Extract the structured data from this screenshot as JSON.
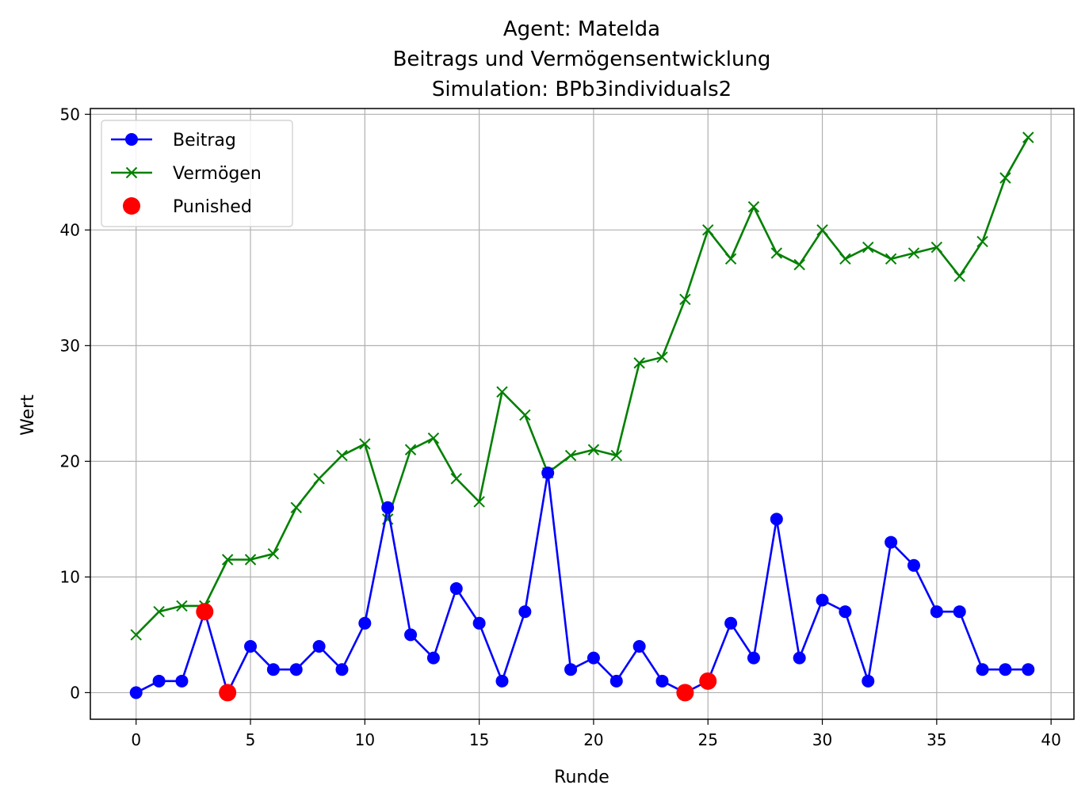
{
  "chart_data": {
    "type": "line",
    "title_lines": [
      "Agent: Matelda",
      "Beitrags und Vermögensentwicklung",
      "Simulation: BPb3individuals2"
    ],
    "xlabel": "Runde",
    "ylabel": "Wert",
    "xlim": [
      -2,
      41
    ],
    "ylim": [
      -2.3,
      50.5
    ],
    "xticks": [
      0,
      5,
      10,
      15,
      20,
      25,
      30,
      35,
      40
    ],
    "yticks": [
      0,
      10,
      20,
      30,
      40,
      50
    ],
    "grid": true,
    "legend_position": "top-left",
    "x": [
      0,
      1,
      2,
      3,
      4,
      5,
      6,
      7,
      8,
      9,
      10,
      11,
      12,
      13,
      14,
      15,
      16,
      17,
      18,
      19,
      20,
      21,
      22,
      23,
      24,
      25,
      26,
      27,
      28,
      29,
      30,
      31,
      32,
      33,
      34,
      35,
      36,
      37,
      38,
      39
    ],
    "series": [
      {
        "name": "Beitrag",
        "color": "#0000ff",
        "marker": "circle",
        "values": [
          0,
          1,
          1,
          7,
          0,
          4,
          2,
          2,
          4,
          2,
          6,
          16,
          5,
          3,
          9,
          6,
          1,
          7,
          19,
          2,
          3,
          1,
          4,
          1,
          0,
          1,
          6,
          3,
          15,
          3,
          8,
          7,
          1,
          13,
          11,
          7,
          7,
          2,
          2,
          2
        ]
      },
      {
        "name": "Vermögen",
        "color": "#008000",
        "marker": "x",
        "values": [
          5,
          7,
          7.5,
          7.5,
          11.5,
          11.5,
          12,
          16,
          18.5,
          20.5,
          21.5,
          15,
          21,
          22,
          18.5,
          16.5,
          26,
          24,
          19,
          20.5,
          21,
          20.5,
          28.5,
          29,
          34,
          40,
          37.5,
          42,
          38,
          37,
          40,
          37.5,
          38.5,
          37.5,
          38,
          38.5,
          36,
          39,
          44.5,
          48
        ]
      }
    ],
    "punished": {
      "name": "Punished",
      "color": "#ff0000",
      "points": [
        {
          "x": 3,
          "y": 7
        },
        {
          "x": 4,
          "y": 0
        },
        {
          "x": 24,
          "y": 0
        },
        {
          "x": 25,
          "y": 1
        }
      ]
    }
  }
}
